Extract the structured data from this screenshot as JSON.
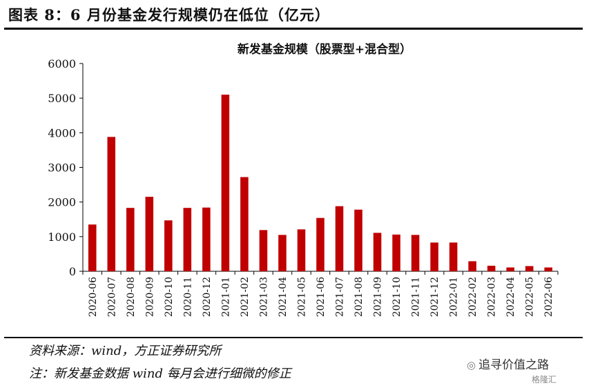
{
  "figure": {
    "title": "图表 8：6 月份基金发行规模仍在低位（亿元）",
    "source": "资料来源：wind，方正证券研究所",
    "footnote": "注：新发基金数据 wind 每月会进行细微的修正"
  },
  "watermark": {
    "text": "追寻价值之路",
    "sub": "格隆汇",
    "icon": "wechat-icon"
  },
  "chart_data": {
    "type": "bar",
    "title": "新发基金规模（股票型+混合型）",
    "xlabel": "",
    "ylabel": "",
    "ylim": [
      0,
      6000
    ],
    "yticks": [
      0,
      1000,
      2000,
      3000,
      4000,
      5000,
      6000
    ],
    "categories": [
      "2020-06",
      "2020-07",
      "2020-08",
      "2020-09",
      "2020-10",
      "2020-11",
      "2020-12",
      "2021-01",
      "2021-02",
      "2021-03",
      "2021-04",
      "2021-05",
      "2021-06",
      "2021-07",
      "2021-08",
      "2021-09",
      "2021-10",
      "2021-11",
      "2021-12",
      "2022-01",
      "2022-02",
      "2022-03",
      "2022-04",
      "2022-05",
      "2022-06"
    ],
    "values": [
      1350,
      3880,
      1830,
      2150,
      1470,
      1830,
      1840,
      5100,
      2720,
      1190,
      1050,
      1210,
      1540,
      1880,
      1780,
      1110,
      1060,
      1050,
      830,
      830,
      290,
      160,
      110,
      150,
      110
    ],
    "bar_color": "#C00000",
    "grid": false
  }
}
